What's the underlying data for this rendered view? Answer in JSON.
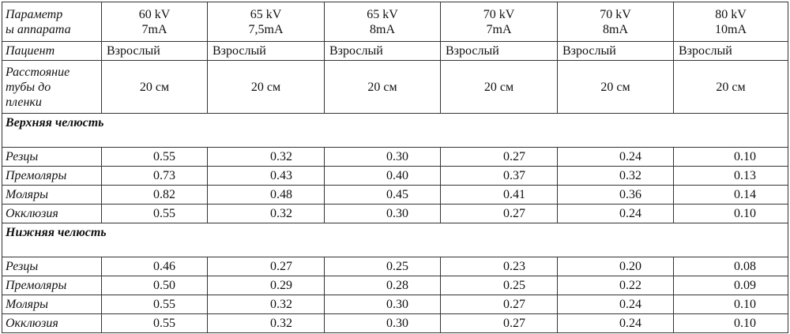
{
  "table": {
    "header": {
      "label": [
        "Параметр",
        "ы аппарата"
      ],
      "columns": [
        [
          "60 kV",
          "7mA"
        ],
        [
          "65 kV",
          "7,5mA"
        ],
        [
          "65 kV",
          "8mA"
        ],
        [
          "70 kV",
          "7mA"
        ],
        [
          "70 kV",
          "8mA"
        ],
        [
          "80 kV",
          "10mA"
        ]
      ]
    },
    "patient": {
      "label": "Пациент",
      "values": [
        "Взрослый",
        "Взрослый",
        "Взрослый",
        "Взрослый",
        "Взрослый",
        "Взрослый"
      ]
    },
    "distance": {
      "label": [
        "Расстояние",
        "тубы до",
        "пленки"
      ],
      "values": [
        "20 см",
        "20 см",
        "20 см",
        "20 см",
        "20 см",
        "20 см"
      ]
    },
    "sections": [
      {
        "title": "Верхняя челюсть",
        "rows": [
          {
            "label": "Резцы",
            "values": [
              "0.55",
              "0.32",
              "0.30",
              "0.27",
              "0.24",
              "0.10"
            ]
          },
          {
            "label": "Премоляры",
            "values": [
              "0.73",
              "0.43",
              "0.40",
              "0.37",
              "0.32",
              "0.13"
            ]
          },
          {
            "label": "Моляры",
            "values": [
              "0.82",
              "0.48",
              "0.45",
              "0.41",
              "0.36",
              "0.14"
            ]
          },
          {
            "label": "Окклюзия",
            "values": [
              "0.55",
              "0.32",
              "0.30",
              "0.27",
              "0.24",
              "0.10"
            ]
          }
        ]
      },
      {
        "title": "Нижняя челюсть",
        "rows": [
          {
            "label": "Резцы",
            "values": [
              "0.46",
              "0.27",
              "0.25",
              "0.23",
              "0.20",
              "0.08"
            ]
          },
          {
            "label": "Премоляры",
            "values": [
              "0.50",
              "0.29",
              "0.28",
              "0.25",
              "0.22",
              "0.09"
            ]
          },
          {
            "label": "Моляры",
            "values": [
              "0.55",
              "0.32",
              "0.30",
              "0.27",
              "0.24",
              "0.10"
            ]
          },
          {
            "label": "Окклюзия",
            "values": [
              "0.55",
              "0.32",
              "0.30",
              "0.27",
              "0.24",
              "0.10"
            ]
          }
        ]
      }
    ]
  }
}
